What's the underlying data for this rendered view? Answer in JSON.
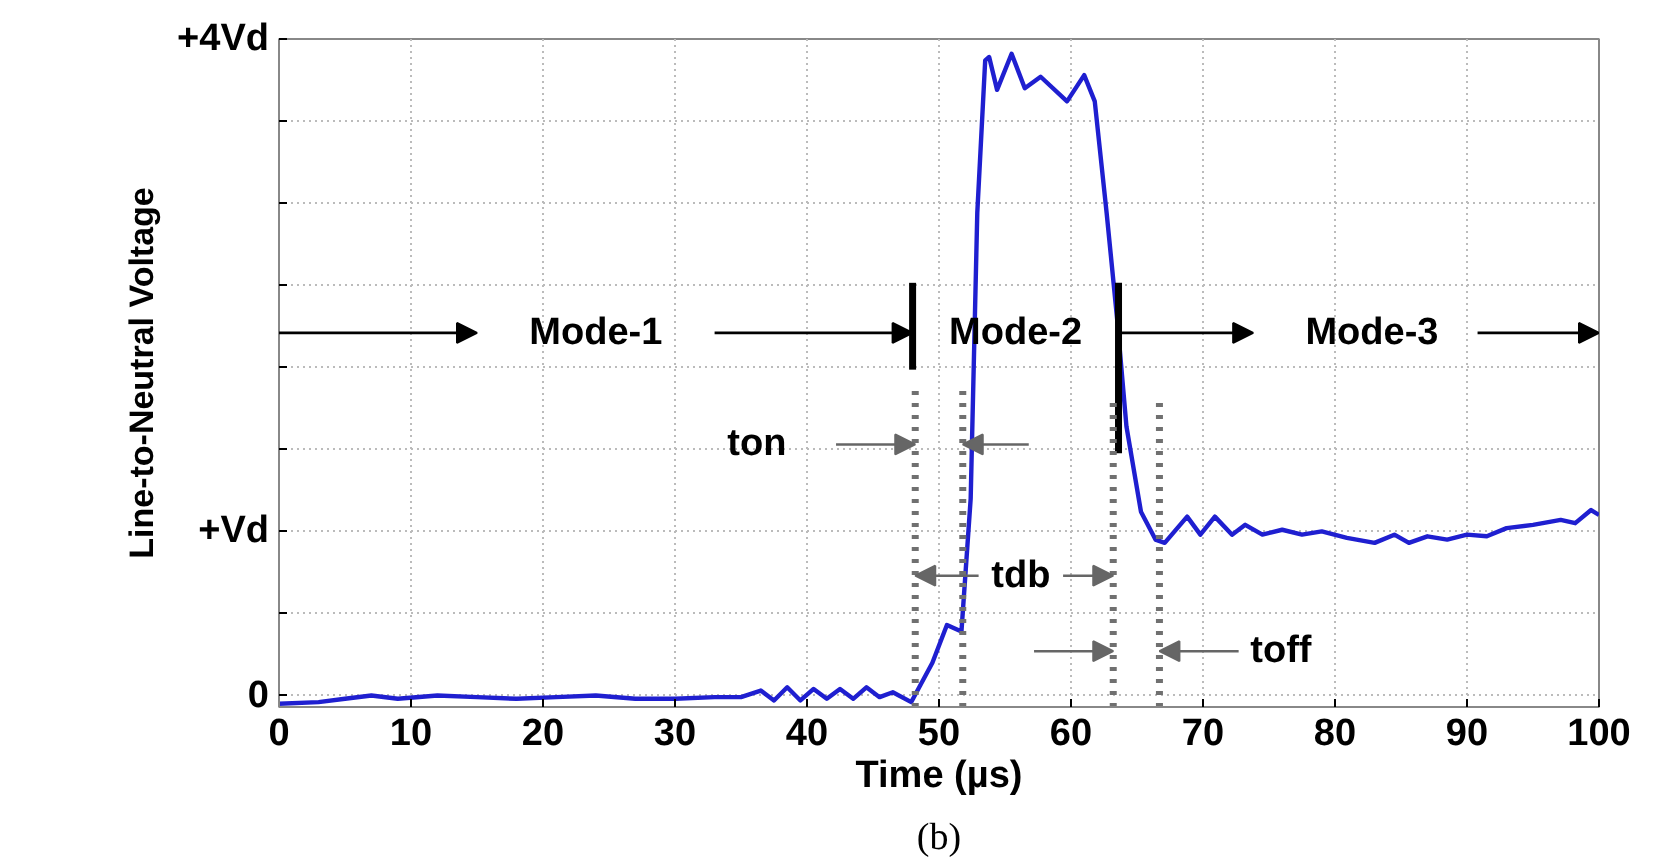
{
  "chart_data": {
    "type": "line",
    "xlabel": "Time (µs)",
    "ylabel": "Line-to-Neutral Voltage",
    "xlim": [
      0,
      100
    ],
    "ylim": [
      -0.07,
      4
    ],
    "xticks": [
      0,
      10,
      20,
      30,
      40,
      50,
      60,
      70,
      80,
      90,
      100
    ],
    "yticks": [
      {
        "value": 0,
        "label": "0"
      },
      {
        "value": 0.5,
        "label": null
      },
      {
        "value": 1,
        "label": "+Vd"
      },
      {
        "value": 1.5,
        "label": null
      },
      {
        "value": 2,
        "label": null
      },
      {
        "value": 2.5,
        "label": null
      },
      {
        "value": 3,
        "label": null
      },
      {
        "value": 3.5,
        "label": null
      },
      {
        "value": 4,
        "label": "+4Vd"
      }
    ],
    "grid": true,
    "marker": "none",
    "line_style": "solid",
    "series": [
      {
        "color": "#1f1fd0",
        "x": [
          0,
          3,
          5,
          7,
          9,
          12,
          15,
          18,
          21,
          24,
          27,
          30,
          33,
          35,
          36.5,
          37.5,
          38.5,
          39.5,
          40.5,
          41.5,
          42.5,
          43.5,
          44.5,
          45.5,
          46.5,
          47.9,
          49.5,
          50.6,
          51.7,
          52.4,
          52.9,
          53.5,
          53.8,
          54.4,
          55.5,
          56.5,
          57.7,
          59.7,
          61,
          61.8,
          62.7,
          63.5,
          64.2,
          65.3,
          66.4,
          67.1,
          68.8,
          69.8,
          70.9,
          72.2,
          73.2,
          74.5,
          76,
          77.5,
          79,
          80.9,
          83,
          84.5,
          85.6,
          87,
          88.5,
          90,
          91.5,
          93,
          95,
          97.1,
          98.2,
          99.4,
          100
        ],
        "values": [
          -0.05,
          -0.04,
          -0.02,
          0.0,
          -0.02,
          0.0,
          -0.01,
          -0.02,
          -0.01,
          0.0,
          -0.02,
          -0.02,
          -0.01,
          -0.01,
          0.03,
          -0.03,
          0.05,
          -0.03,
          0.04,
          -0.02,
          0.04,
          -0.02,
          0.05,
          -0.01,
          0.02,
          -0.04,
          0.2,
          0.43,
          0.39,
          1.2,
          2.94,
          3.87,
          3.89,
          3.69,
          3.91,
          3.7,
          3.77,
          3.62,
          3.78,
          3.62,
          2.94,
          2.29,
          1.64,
          1.12,
          0.95,
          0.93,
          1.09,
          0.98,
          1.09,
          0.98,
          1.04,
          0.98,
          1.01,
          0.98,
          1.0,
          0.96,
          0.93,
          0.98,
          0.93,
          0.97,
          0.95,
          0.98,
          0.97,
          1.02,
          1.04,
          1.07,
          1.05,
          1.13,
          1.1
        ]
      }
    ],
    "ref_lines": [
      {
        "axis": "x",
        "value": 48,
        "label": null,
        "color": "#000000",
        "line_style": "solid"
      },
      {
        "axis": "x",
        "value": 63.6,
        "label": null,
        "color": "#000000",
        "line_style": "solid"
      },
      {
        "axis": "x",
        "value": 48.2,
        "label": null,
        "color": "#707070",
        "line_style": "dotted"
      },
      {
        "axis": "x",
        "value": 51.8,
        "label": null,
        "color": "#707070",
        "line_style": "dotted"
      },
      {
        "axis": "x",
        "value": 63.2,
        "label": null,
        "color": "#707070",
        "line_style": "dotted"
      },
      {
        "axis": "x",
        "value": 66.7,
        "label": null,
        "color": "#707070",
        "line_style": "dotted"
      }
    ],
    "annotations": [
      "Mode-1",
      "Mode-2",
      "Mode-3",
      "ton",
      {
        "text": "tdb",
        "x": 48.2,
        "y": 0.73
      },
      {
        "text": "toff",
        "x": 66.7,
        "y": 0.27
      },
      "(b)"
    ]
  }
}
